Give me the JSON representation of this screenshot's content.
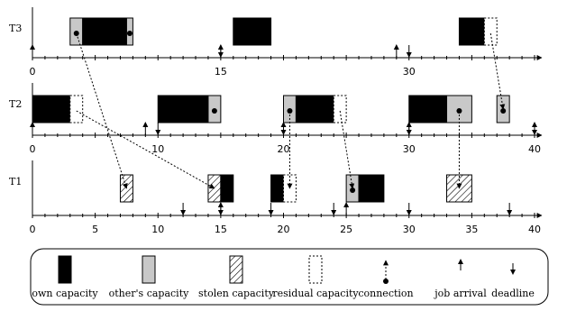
{
  "colors": {
    "own": "#000000",
    "others": "#c8c8c8",
    "stolen_stroke": "#000000",
    "axis": "#000000"
  },
  "tasks": [
    {
      "name": "T3",
      "axis_ticks": [
        "0",
        "15",
        "30"
      ],
      "axis_max": 40,
      "blocks": [
        {
          "kind": "others",
          "start": 3.0,
          "end": 4.0,
          "dot": true
        },
        {
          "kind": "own",
          "start": 4.0,
          "end": 7.5
        },
        {
          "kind": "others",
          "start": 7.5,
          "end": 8.0,
          "dot": true
        },
        {
          "kind": "own",
          "start": 16.0,
          "end": 19.0
        },
        {
          "kind": "own",
          "start": 34.0,
          "end": 36.0
        },
        {
          "kind": "residual",
          "start": 36.0,
          "end": 37.0
        }
      ],
      "arrivals": [
        0,
        15,
        29
      ],
      "deadlines": [
        15,
        30
      ]
    },
    {
      "name": "T2",
      "axis_ticks": [
        "0",
        "10",
        "20",
        "30",
        "40"
      ],
      "axis_max": 40,
      "blocks": [
        {
          "kind": "own",
          "start": 0.0,
          "end": 3.0
        },
        {
          "kind": "residual",
          "start": 3.0,
          "end": 4.0
        },
        {
          "kind": "own",
          "start": 10.0,
          "end": 14.0
        },
        {
          "kind": "others",
          "start": 14.0,
          "end": 15.0,
          "dot": true
        },
        {
          "kind": "others",
          "start": 20.0,
          "end": 21.0,
          "dot": true
        },
        {
          "kind": "own",
          "start": 21.0,
          "end": 24.0
        },
        {
          "kind": "residual",
          "start": 24.0,
          "end": 25.0
        },
        {
          "kind": "own",
          "start": 30.0,
          "end": 33.0
        },
        {
          "kind": "others",
          "start": 33.0,
          "end": 35.0,
          "dot": true
        },
        {
          "kind": "others",
          "start": 37.0,
          "end": 38.0,
          "dot": true
        }
      ],
      "arrivals": [
        0,
        9,
        20,
        30,
        40
      ],
      "deadlines": [
        10,
        20,
        30,
        40
      ]
    },
    {
      "name": "T1",
      "axis_ticks": [
        "0",
        "5",
        "10",
        "15",
        "20",
        "25",
        "30",
        "35",
        "40"
      ],
      "axis_max": 40,
      "blocks": [
        {
          "kind": "stolen",
          "start": 7.0,
          "end": 8.0
        },
        {
          "kind": "stolen",
          "start": 14.0,
          "end": 15.0
        },
        {
          "kind": "own",
          "start": 15.0,
          "end": 16.0
        },
        {
          "kind": "own",
          "start": 19.0,
          "end": 20.0
        },
        {
          "kind": "residual",
          "start": 20.0,
          "end": 21.0
        },
        {
          "kind": "others",
          "start": 25.0,
          "end": 26.0,
          "dot": true
        },
        {
          "kind": "own",
          "start": 26.0,
          "end": 28.0
        },
        {
          "kind": "stolen",
          "start": 33.0,
          "end": 35.0
        }
      ],
      "arrivals": [
        15,
        25
      ],
      "deadlines": [
        12,
        15,
        19,
        24,
        30,
        38
      ]
    }
  ],
  "connections": [
    {
      "from_task": "T3",
      "from_t": 3.5,
      "to_task": "T1",
      "to_t": 7.5
    },
    {
      "from_task": "T3",
      "from_t": 36.5,
      "to_task": "T2",
      "to_t": 37.5
    },
    {
      "from_task": "T2",
      "from_t": 3.5,
      "to_task": "T1",
      "to_t": 14.5
    },
    {
      "from_task": "T2",
      "from_t": 20.5,
      "to_task": "T1",
      "to_t": 20.5
    },
    {
      "from_task": "T2",
      "from_t": 24.5,
      "to_task": "T1",
      "to_t": 25.5
    },
    {
      "from_task": "T2",
      "from_t": 34.0,
      "to_task": "T1",
      "to_t": 34.0
    }
  ],
  "legend": [
    {
      "kind": "own",
      "label": "own capacity"
    },
    {
      "kind": "others",
      "label": "other's capacity"
    },
    {
      "kind": "stolen",
      "label": "stolen capacity"
    },
    {
      "kind": "residual",
      "label": "residual capacity"
    },
    {
      "kind": "connection",
      "label": "connection"
    },
    {
      "kind": "arrival",
      "label": "job arrival"
    },
    {
      "kind": "deadline",
      "label": "deadline"
    }
  ]
}
